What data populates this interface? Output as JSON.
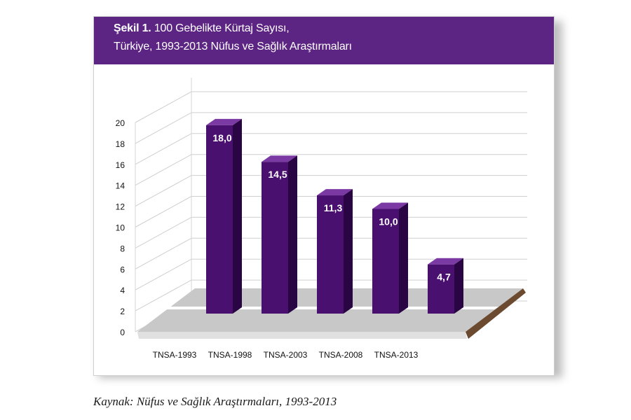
{
  "colors": {
    "header_bg": "#5c2483",
    "bar_front": "#4a1070",
    "bar_side": "#2a0544",
    "bar_top": "#7b3aa3",
    "floor": "#c8c8c8"
  },
  "figure": {
    "number": "Şekil 1.",
    "title_line1": "100 Gebelikte Kürtaj Sayısı,",
    "title_line2": "Türkiye, 1993-2013 Nüfus ve Sağlık Araştırmaları"
  },
  "source": "Kaynak: Nüfus ve Sağlık Araştırmaları, 1993-2013",
  "chart_data": {
    "type": "bar",
    "categories": [
      "TNSA-1993",
      "TNSA-1998",
      "TNSA-2003",
      "TNSA-2008",
      "TNSA-2013"
    ],
    "values": [
      18.0,
      14.5,
      11.3,
      10.0,
      4.7
    ],
    "value_labels": [
      "18,0",
      "14,5",
      "11,3",
      "10,0",
      "4,7"
    ],
    "yticks": [
      0,
      2,
      4,
      6,
      8,
      10,
      12,
      14,
      16,
      18,
      20
    ],
    "ylim": [
      0,
      20
    ],
    "grid": true,
    "xlabel": "",
    "ylabel": ""
  }
}
